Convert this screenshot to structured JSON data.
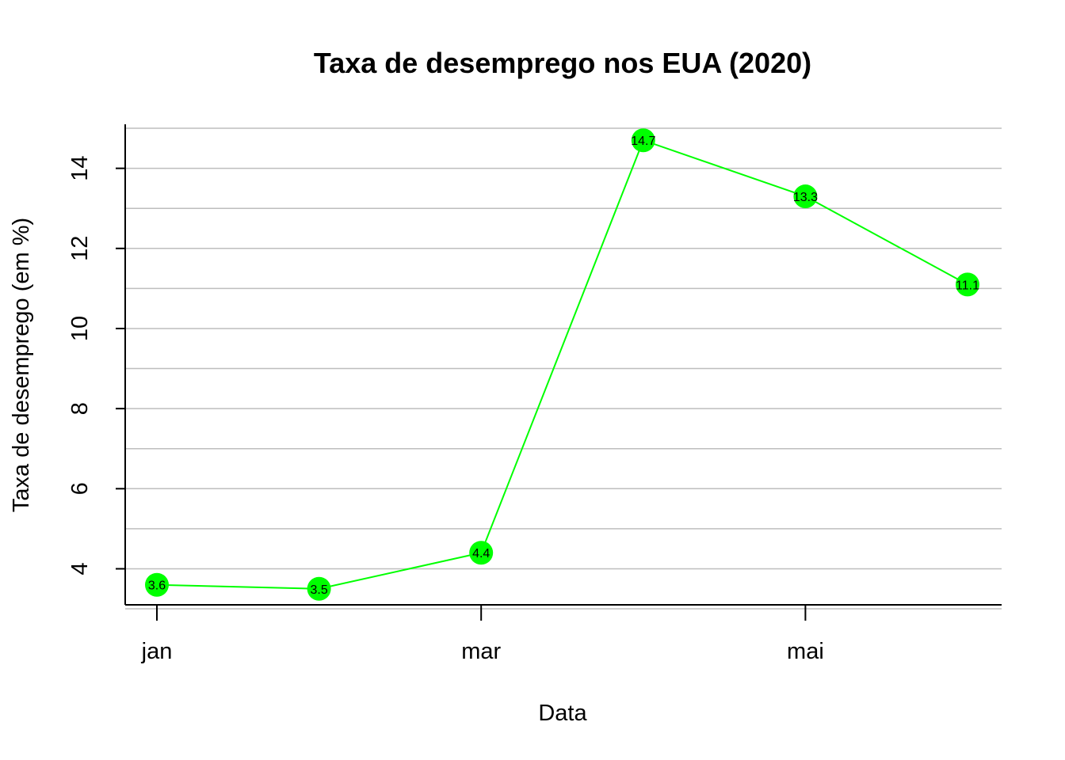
{
  "chart_data": {
    "type": "line",
    "title": "Taxa de desemprego nos EUA (2020)",
    "xlabel": "Data",
    "ylabel": "Taxa de desemprego (em %)",
    "x": [
      "2020-01",
      "2020-02",
      "2020-03",
      "2020-04",
      "2020-05",
      "2020-06"
    ],
    "x_tick_positions": [
      "2020-01",
      "2020-03",
      "2020-05"
    ],
    "x_tick_labels": [
      "jan",
      "mar",
      "mai"
    ],
    "series": [
      {
        "values": [
          3.6,
          3.5,
          4.4,
          14.7,
          13.3,
          11.1
        ],
        "data_labels": [
          "3.6",
          "3.5",
          "4.4",
          "14.7",
          "13.3",
          "11.1"
        ]
      }
    ],
    "y_ticks": [
      4,
      6,
      8,
      10,
      12,
      14
    ],
    "y_tick_labels": [
      "4",
      "6",
      "8",
      "10",
      "12",
      "14"
    ],
    "y_gridlines": [
      3,
      4,
      5,
      6,
      7,
      8,
      9,
      10,
      11,
      12,
      13,
      14,
      15
    ],
    "ylim": [
      3.1,
      15.1
    ],
    "grid": "horizontal",
    "legend": "none",
    "colors": {
      "series": "#00ff00",
      "grid": "#bebebe",
      "axis": "#000000"
    }
  }
}
